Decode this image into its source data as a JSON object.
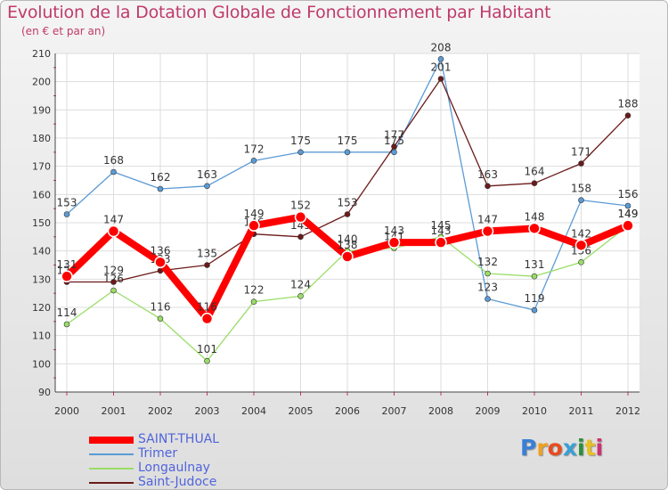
{
  "title": "Evolution de la Dotation Globale de Fonctionnement par Habitant",
  "subtitle": "(en € et par an)",
  "logo_text": "Proxiti",
  "chart_data": {
    "type": "line",
    "title": "Evolution de la Dotation Globale de Fonctionnement par Habitant",
    "ylabel": "(en € et par an)",
    "xlabel": "",
    "categories": [
      "2000",
      "2001",
      "2002",
      "2003",
      "2004",
      "2005",
      "2006",
      "2007",
      "2008",
      "2009",
      "2010",
      "2011",
      "2012"
    ],
    "ylim": [
      90,
      210
    ],
    "yticks": [
      90,
      100,
      110,
      120,
      130,
      140,
      150,
      160,
      170,
      180,
      190,
      200,
      210
    ],
    "legend_position": "bottom-left",
    "series": [
      {
        "name": "SAINT-THUAL",
        "color": "#ff0000",
        "values": [
          131,
          147,
          136,
          116,
          149,
          152,
          138,
          143,
          143,
          147,
          148,
          142,
          149
        ]
      },
      {
        "name": "Trimer",
        "color": "#5b9bd5",
        "values": [
          153,
          168,
          162,
          163,
          172,
          175,
          175,
          175,
          208,
          123,
          119,
          158,
          156
        ]
      },
      {
        "name": "Longaulnay",
        "color": "#99dd66",
        "values": [
          114,
          126,
          116,
          101,
          122,
          124,
          140,
          141,
          145,
          132,
          131,
          136,
          149
        ]
      },
      {
        "name": "Saint-Judoce",
        "color": "#6b1a1a",
        "values": [
          129,
          129,
          133,
          135,
          146,
          145,
          153,
          177,
          201,
          163,
          164,
          171,
          188
        ]
      }
    ]
  }
}
